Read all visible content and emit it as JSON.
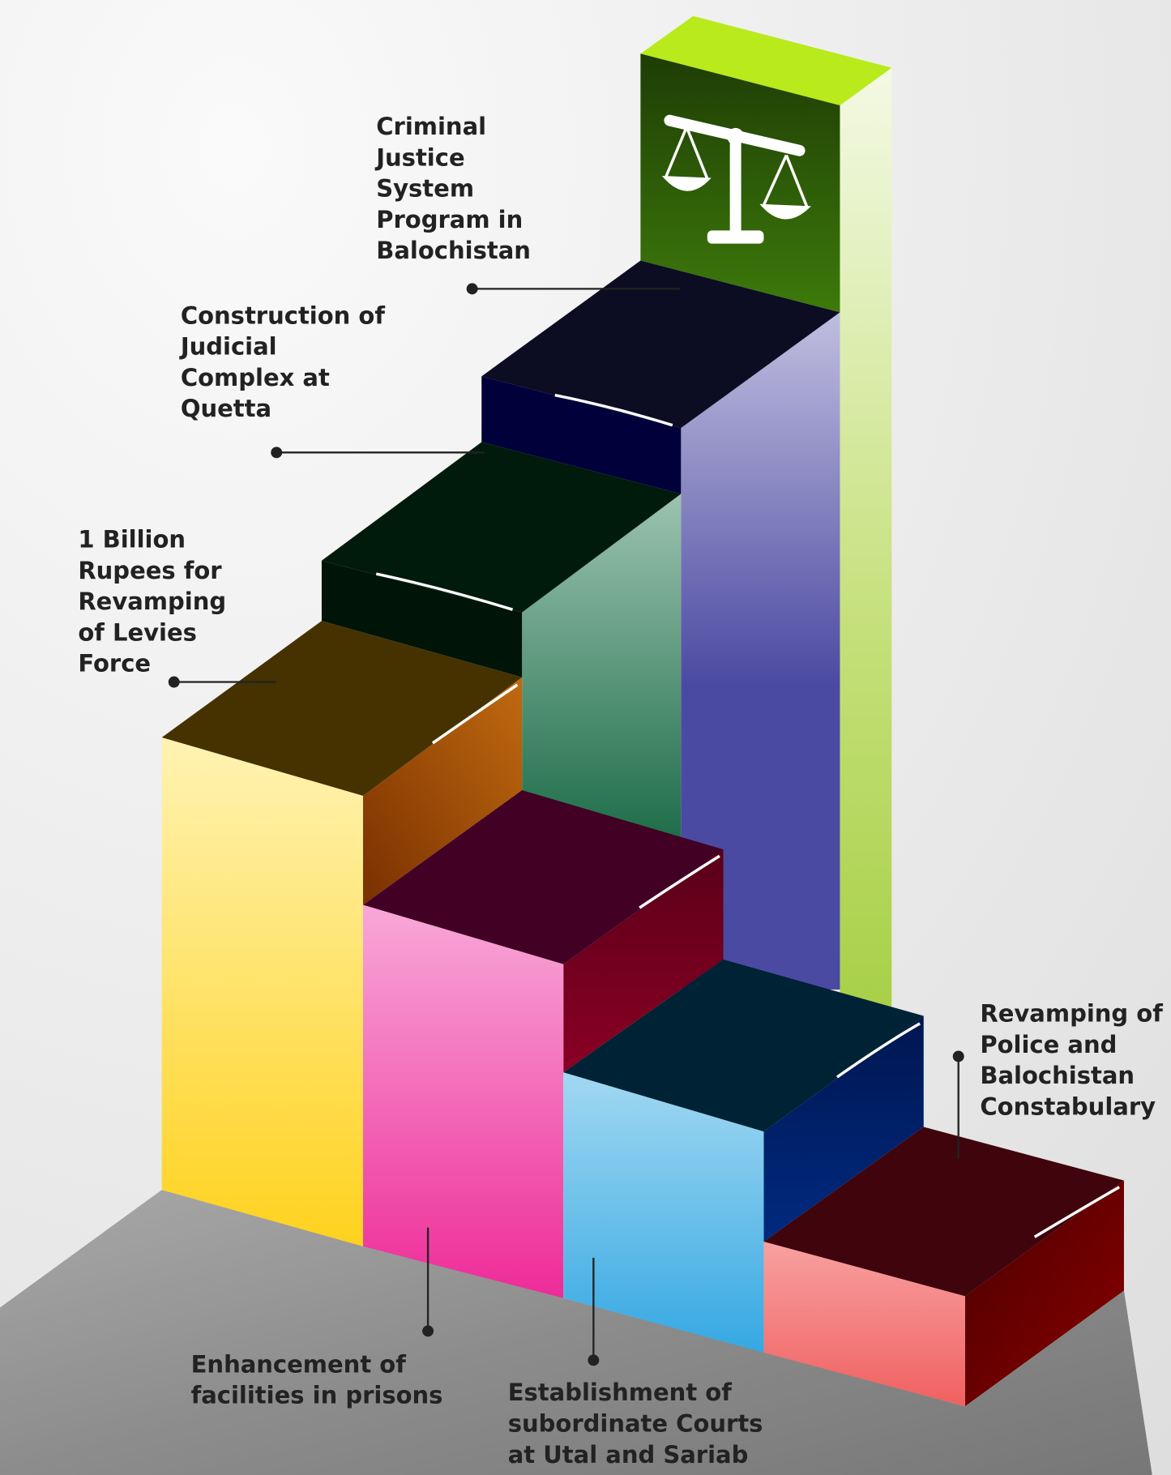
{
  "labels": [
    {
      "lines": [
        "Criminal",
        "Justice",
        "System",
        "Program in",
        "Balochistan"
      ]
    },
    {
      "lines": [
        "Construction of",
        "Judicial",
        "Complex at",
        "Quetta"
      ]
    },
    {
      "lines": [
        "1 Billion",
        "Rupees for",
        "Revamping",
        "of Levies",
        "Force"
      ]
    },
    {
      "lines": [
        "Revamping of",
        "Police and",
        "Balochistan",
        "Constabulary"
      ]
    },
    {
      "lines": [
        "Enhancement of",
        "facilities in prisons"
      ]
    },
    {
      "lines": [
        "Establishment of",
        "subordinate Courts",
        "at Utal and Sariab"
      ]
    }
  ]
}
